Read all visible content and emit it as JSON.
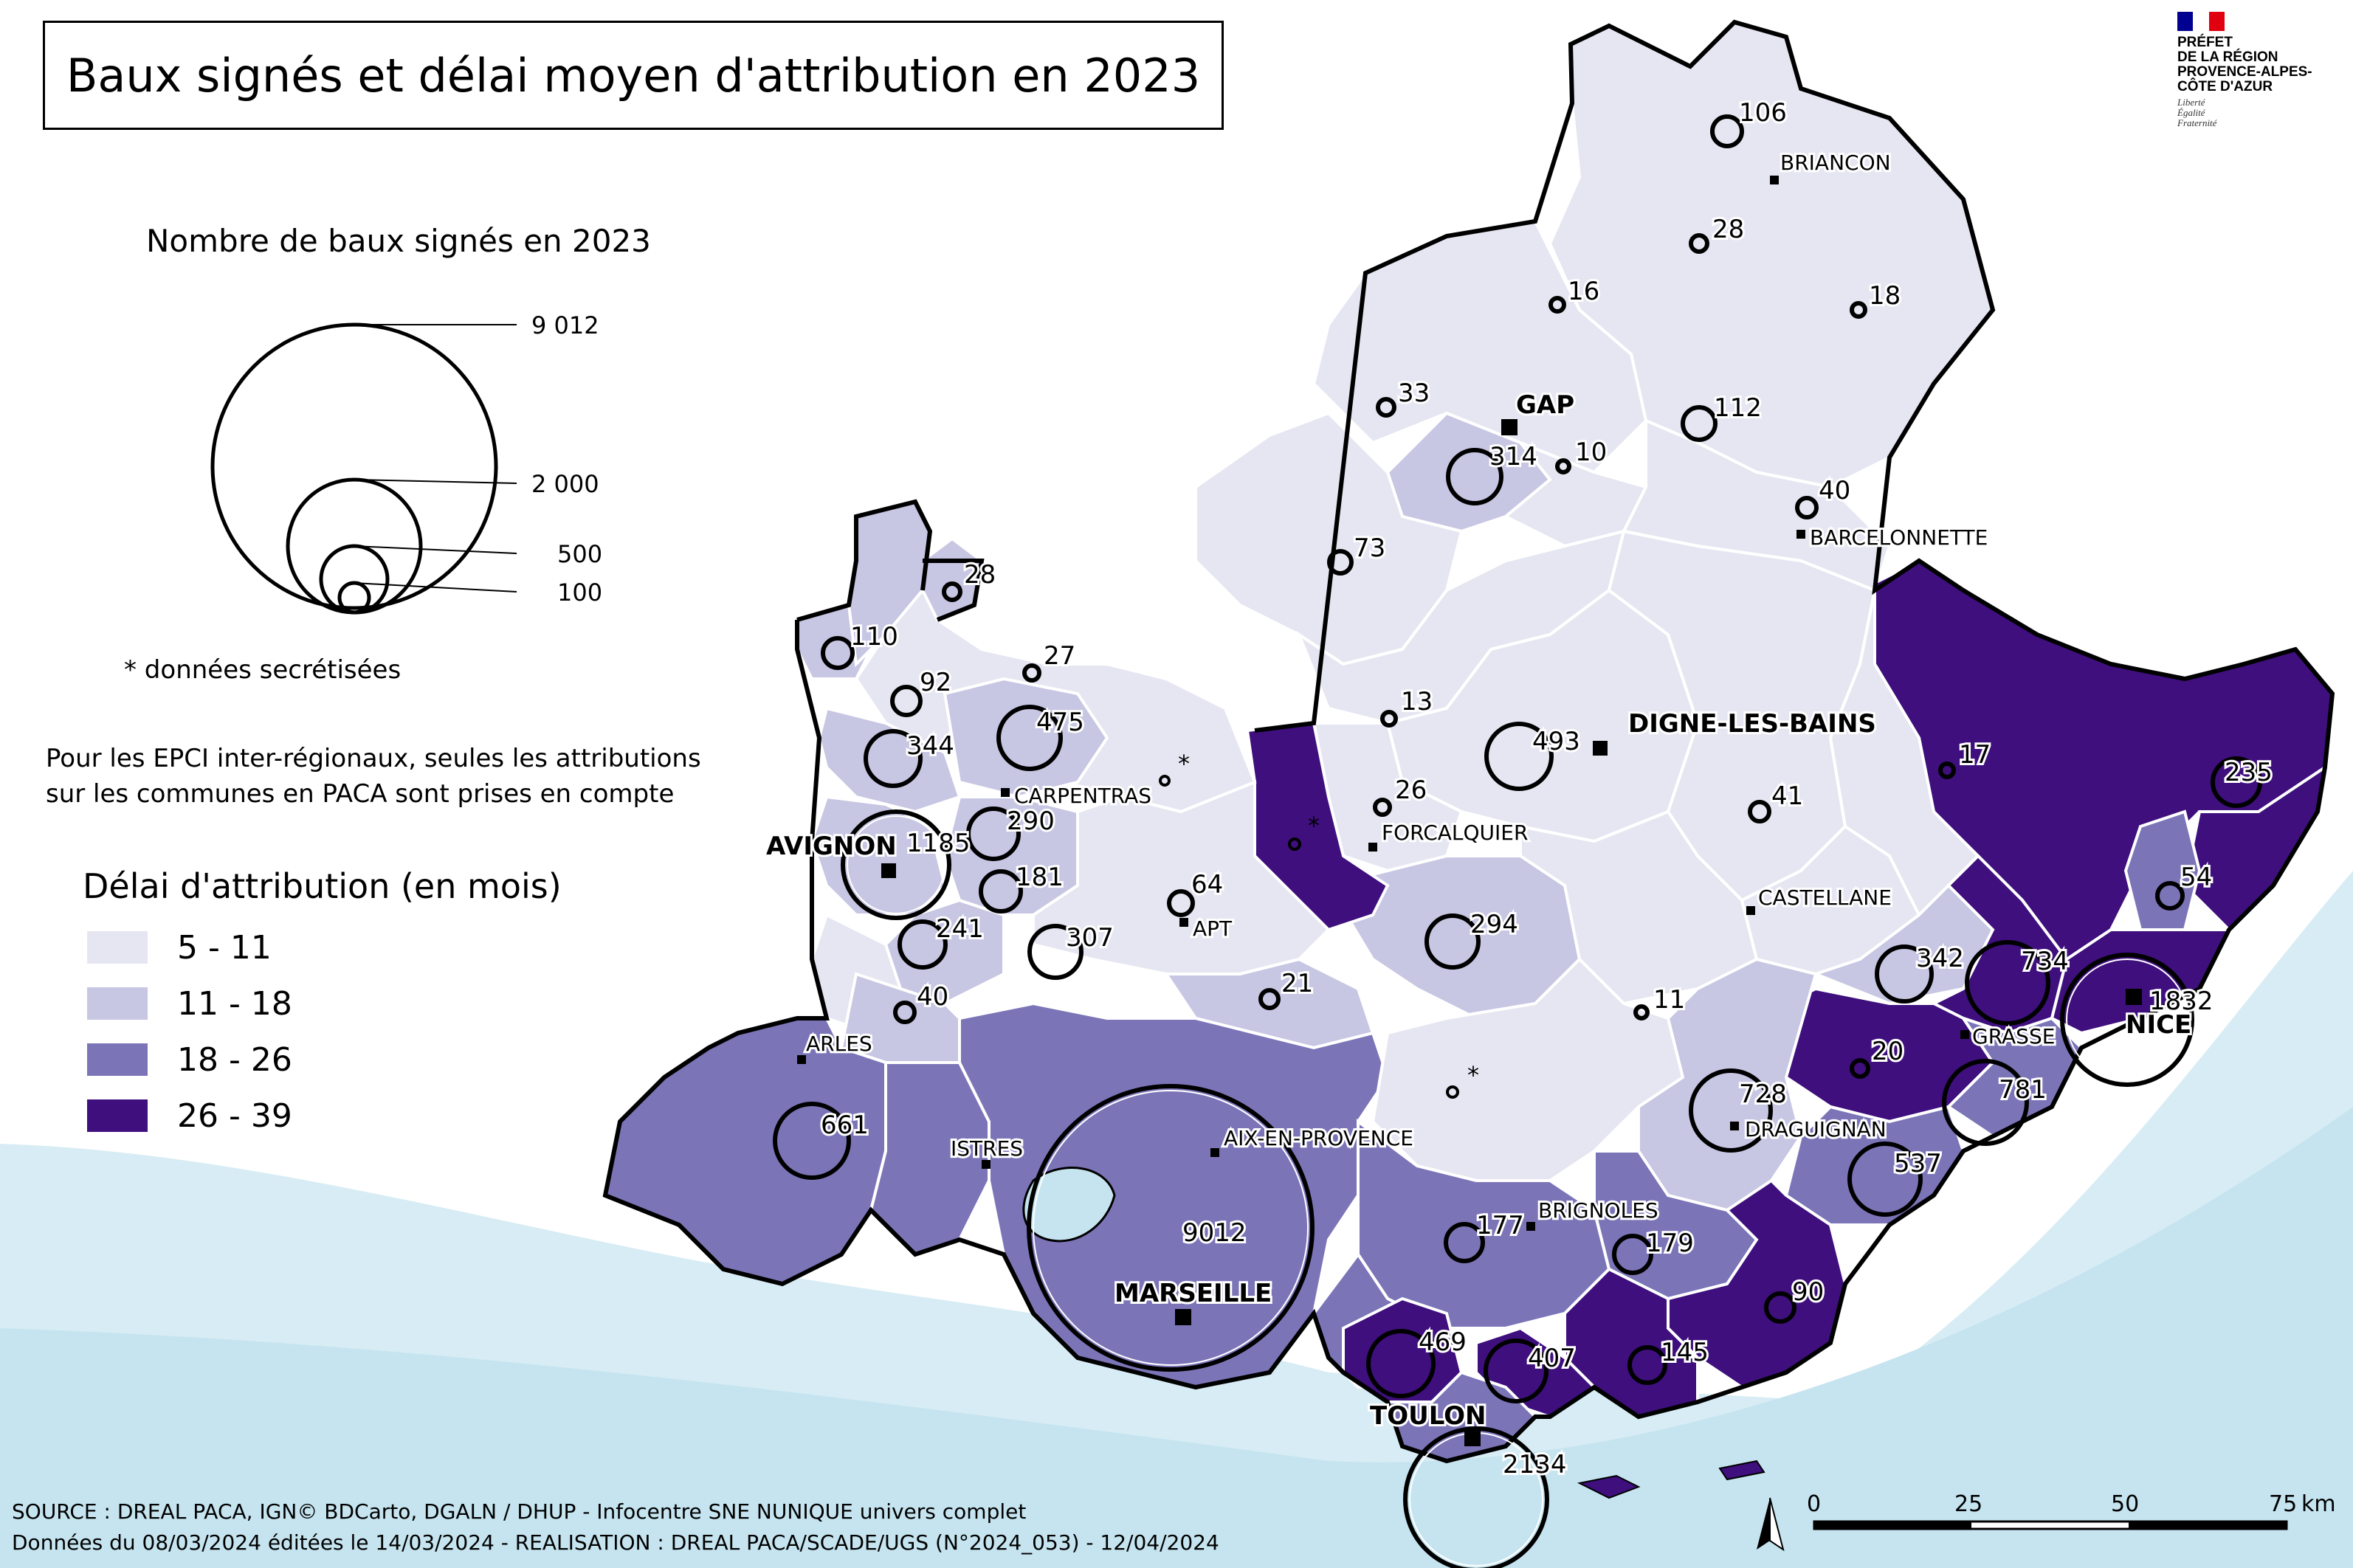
{
  "title": "Baux signés et délai moyen d'attribution en 2023",
  "colors": {
    "sea": "#c5e4ef",
    "class_5_11": "#e6e6f2",
    "class_11_18": "#c7c6e3",
    "class_18_26": "#7b75b8",
    "class_26_39": "#3e0f7d",
    "border": "#ffffff",
    "region_border": "#000000"
  },
  "size_legend": {
    "title": "Nombre de baux signés en 2023",
    "values": [
      "9 012",
      "2 000",
      "500",
      "100"
    ],
    "secret_note": "* données secrétisées"
  },
  "epci_note": {
    "line1": "Pour les EPCI inter-régionaux, seules les attributions",
    "line2": "sur les communes en PACA sont prises en compte"
  },
  "delai_legend": {
    "title": "Délai d'attribution (en mois)",
    "classes": [
      {
        "label": "5 - 11",
        "color": "#e6e6f2"
      },
      {
        "label": "11 - 18",
        "color": "#c7c6e3"
      },
      {
        "label": "18 - 26",
        "color": "#7b75b8"
      },
      {
        "label": "26 - 39",
        "color": "#3e0f7d"
      }
    ]
  },
  "cities": {
    "briancon": "BRIANCON",
    "gap": "GAP",
    "barcelonnette": "BARCELONNETTE",
    "digne": "DIGNE-LES-BAINS",
    "carpentras": "CARPENTRAS",
    "avignon": "AVIGNON",
    "forcalquier": "FORCALQUIER",
    "apt": "APT",
    "castellane": "CASTELLANE",
    "grasse": "GRASSE",
    "nice": "NICE",
    "arles": "ARLES",
    "istres": "ISTRES",
    "aix": "AIX-EN-PROVENCE",
    "draguignan": "DRAGUIGNAN",
    "brignoles": "BRIGNOLES",
    "marseille": "MARSEILLE",
    "toulon": "TOULON"
  },
  "baux": {
    "v106": "106",
    "v28a": "28",
    "v16": "16",
    "v18": "18",
    "v33": "33",
    "v112": "112",
    "v314": "314",
    "v10": "10",
    "v40a": "40",
    "v73": "73",
    "v28b": "28",
    "v110": "110",
    "v27": "27",
    "v92": "92",
    "v475": "475",
    "v344": "344",
    "v13": "13",
    "v493": "493",
    "v17": "17",
    "v235": "235",
    "v26": "26",
    "v41": "41",
    "v290": "290",
    "v1185": "1185",
    "v181": "181",
    "v64": "64",
    "v54": "54",
    "v241": "241",
    "v307": "307",
    "v294": "294",
    "v342": "342",
    "v734": "734",
    "v21": "21",
    "v11": "11",
    "v1832": "1832",
    "v40b": "40",
    "v20": "20",
    "v661": "661",
    "v728": "728",
    "v781": "781",
    "v537": "537",
    "v9012": "9012",
    "v177": "177",
    "v179": "179",
    "v90": "90",
    "v469": "469",
    "v407": "407",
    "v145": "145",
    "v2134": "2134",
    "star": "*"
  },
  "scale": {
    "t0": "0",
    "t25": "25",
    "t50": "50",
    "t75": "75",
    "unit": "km"
  },
  "source": {
    "line1": "SOURCE : DREAL PACA, IGN© BDCarto, DGALN / DHUP - Infocentre SNE NUNIQUE univers complet",
    "line2": "Données du 08/03/2024 éditées le 14/03/2024 - REALISATION : DREAL PACA/SCADE/UGS (N°2024_053) - 12/04/2024"
  },
  "prefet": {
    "line1": "PRÉFET",
    "line2": "DE LA RÉGION",
    "line3": "PROVENCE-ALPES-",
    "line4": "CÔTE D'AZUR",
    "devise1": "Liberté",
    "devise2": "Égalité",
    "devise3": "Fraternité"
  }
}
